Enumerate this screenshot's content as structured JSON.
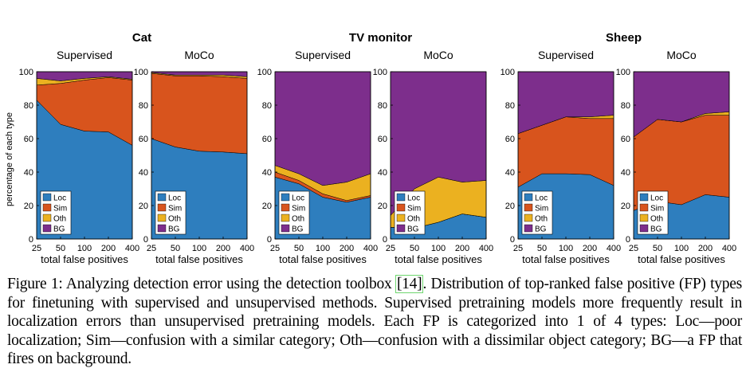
{
  "chart_data": {
    "type": "area",
    "stacked": true,
    "layout": "2 panels per category, 6 panels total",
    "x": [
      "25",
      "50",
      "100",
      "200",
      "400"
    ],
    "xlabel": "total false positives",
    "ylabel": "percentage of each type",
    "ylim": [
      0,
      100
    ],
    "yticks": [
      "0",
      "20",
      "40",
      "60",
      "80",
      "100"
    ],
    "legend": [
      "Loc",
      "Sim",
      "Oth",
      "BG"
    ],
    "legend_position": "bottom-left",
    "colors": {
      "Loc": "#2e7ebe",
      "Sim": "#d8541d",
      "Oth": "#ebb120",
      "BG": "#7d2e8c"
    },
    "groups": [
      {
        "title": "Cat",
        "panels": [
          {
            "title": "Supervised",
            "series": [
              {
                "name": "Loc",
                "values": [
                  83,
                  68.5,
                  64.5,
                  64,
                  56
                ]
              },
              {
                "name": "Sim",
                "values": [
                  9,
                  24.5,
                  30.5,
                  32.5,
                  39
                ]
              },
              {
                "name": "Oth",
                "values": [
                  4,
                  1.5,
                  1,
                  0.5,
                  0.5
                ]
              },
              {
                "name": "BG",
                "values": [
                  4,
                  5.5,
                  4,
                  3,
                  4.5
                ]
              }
            ]
          },
          {
            "title": "MoCo",
            "series": [
              {
                "name": "Loc",
                "values": [
                  60,
                  55,
                  52.5,
                  52,
                  51
                ]
              },
              {
                "name": "Sim",
                "values": [
                  39,
                  42.5,
                  45,
                  45,
                  45
                ]
              },
              {
                "name": "Oth",
                "values": [
                  0.5,
                  0.5,
                  0.5,
                  1,
                  1
                ]
              },
              {
                "name": "BG",
                "values": [
                  0.5,
                  2,
                  2,
                  2,
                  3
                ]
              }
            ]
          }
        ]
      },
      {
        "title": "TV monitor",
        "panels": [
          {
            "title": "Supervised",
            "series": [
              {
                "name": "Loc",
                "values": [
                  37,
                  33,
                  25,
                  22,
                  25
                ]
              },
              {
                "name": "Sim",
                "values": [
                  3,
                  2,
                  2,
                  1,
                  1
                ]
              },
              {
                "name": "Oth",
                "values": [
                  4,
                  4,
                  5,
                  11,
                  13
                ]
              },
              {
                "name": "BG",
                "values": [
                  56,
                  61,
                  68,
                  66,
                  61
                ]
              }
            ]
          },
          {
            "title": "MoCo",
            "series": [
              {
                "name": "Loc",
                "values": [
                  7,
                  6.5,
                  10,
                  15,
                  13
                ]
              },
              {
                "name": "Sim",
                "values": [
                  0,
                  0,
                  0,
                  0,
                  0
                ]
              },
              {
                "name": "Oth",
                "values": [
                  7,
                  23.5,
                  27,
                  19,
                  22
                ]
              },
              {
                "name": "BG",
                "values": [
                  86,
                  70,
                  63,
                  66,
                  65
                ]
              }
            ]
          }
        ]
      },
      {
        "title": "Sheep",
        "panels": [
          {
            "title": "Supervised",
            "series": [
              {
                "name": "Loc",
                "values": [
                  31,
                  39,
                  39,
                  38.5,
                  32
                ]
              },
              {
                "name": "Sim",
                "values": [
                  32,
                  29,
                  34,
                  33.5,
                  40
                ]
              },
              {
                "name": "Oth",
                "values": [
                  0,
                  0,
                  0,
                  1,
                  2
                ]
              },
              {
                "name": "BG",
                "values": [
                  37,
                  32,
                  27,
                  27,
                  26
                ]
              }
            ]
          },
          {
            "title": "MoCo",
            "series": [
              {
                "name": "Loc",
                "values": [
                  17,
                  22.5,
                  20.5,
                  26.5,
                  25
                ]
              },
              {
                "name": "Sim",
                "values": [
                  44,
                  49,
                  49.5,
                  47.5,
                  49
                ]
              },
              {
                "name": "Oth",
                "values": [
                  0,
                  0,
                  0,
                  1,
                  2
                ]
              },
              {
                "name": "BG",
                "values": [
                  39,
                  28.5,
                  30,
                  25,
                  24
                ]
              }
            ]
          }
        ]
      }
    ]
  },
  "caption": {
    "before_cite": "Figure 1: Analyzing detection error using the detection toolbox ",
    "cite": "[14]",
    "after_cite": ". Distribution of top-ranked false positive (FP) types for finetuning with supervised and unsupervised methods. Supervised pretraining models more frequently result in localization errors than unsupervised pretraining models. Each FP is categorized into 1 of 4 types: Loc—poor localization; Sim—confusion with a similar category; Oth—confusion with a dissimilar object category; BG—a FP that fires on background."
  }
}
